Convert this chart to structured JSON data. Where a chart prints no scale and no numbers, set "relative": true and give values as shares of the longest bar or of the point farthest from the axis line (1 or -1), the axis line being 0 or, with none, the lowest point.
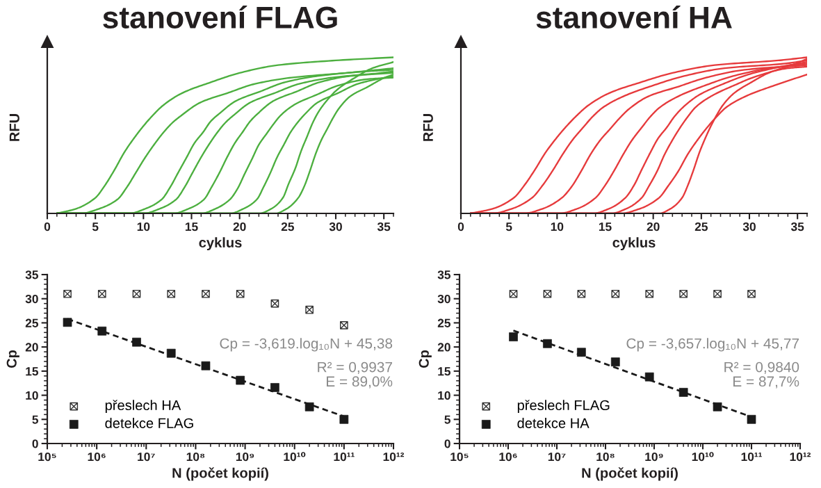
{
  "chart_data": [
    {
      "type": "line",
      "title": "stanovení FLAG",
      "xlabel": "cyklus",
      "ylabel": "RFU",
      "relative": true,
      "xlim": [
        0,
        36
      ],
      "xticks": [
        0,
        {
          "value": 1,
          "label": null
        },
        {
          "value": 2,
          "label": null
        },
        {
          "value": 3,
          "label": null
        },
        {
          "value": 4,
          "label": null
        },
        5,
        {
          "value": 6,
          "label": null
        },
        {
          "value": 7,
          "label": null
        },
        {
          "value": 8,
          "label": null
        },
        {
          "value": 9,
          "label": null
        },
        10,
        {
          "value": 11,
          "label": null
        },
        {
          "value": 12,
          "label": null
        },
        {
          "value": 13,
          "label": null
        },
        {
          "value": 14,
          "label": null
        },
        15,
        {
          "value": 16,
          "label": null
        },
        {
          "value": 17,
          "label": null
        },
        {
          "value": 18,
          "label": null
        },
        {
          "value": 19,
          "label": null
        },
        20,
        {
          "value": 21,
          "label": null
        },
        {
          "value": 22,
          "label": null
        },
        {
          "value": 23,
          "label": null
        },
        {
          "value": 24,
          "label": null
        },
        25,
        {
          "value": 26,
          "label": null
        },
        {
          "value": 27,
          "label": null
        },
        {
          "value": 28,
          "label": null
        },
        {
          "value": 29,
          "label": null
        },
        30,
        {
          "value": 31,
          "label": null
        },
        {
          "value": 32,
          "label": null
        },
        {
          "value": 33,
          "label": null
        },
        {
          "value": 34,
          "label": null
        },
        35,
        {
          "value": 36,
          "label": null
        }
      ],
      "series": [
        {
          "color": "#4caf3f",
          "x": [
            1,
            3,
            5,
            6,
            7,
            8,
            9,
            10,
            11,
            12,
            14,
            17,
            20,
            24,
            30,
            36
          ],
          "values": [
            0,
            0.03,
            0.1,
            0.18,
            0.28,
            0.39,
            0.48,
            0.56,
            0.63,
            0.69,
            0.77,
            0.84,
            0.9,
            0.95,
            0.98,
            1.0
          ]
        },
        {
          "color": "#4caf3f",
          "x": [
            1,
            3.5,
            5.4,
            7.3,
            8.3,
            9.2,
            10.2,
            11.1,
            12.1,
            13.0,
            14.0,
            15.9,
            18.7,
            21.6,
            25.4,
            31.1,
            36
          ],
          "values": [
            0,
            0,
            0.03,
            0.09,
            0.17,
            0.26,
            0.36,
            0.44,
            0.52,
            0.58,
            0.63,
            0.71,
            0.77,
            0.83,
            0.87,
            0.9,
            0.93
          ]
        },
        {
          "color": "#4caf3f",
          "x": [
            1,
            8.5,
            10.2,
            11.9,
            12.8,
            13.6,
            14.5,
            15.3,
            16.2,
            17.0,
            17.9,
            19.6,
            22.1,
            24.7,
            28.1,
            33.2,
            36
          ],
          "values": [
            0,
            0,
            0.03,
            0.09,
            0.17,
            0.26,
            0.36,
            0.45,
            0.52,
            0.59,
            0.64,
            0.72,
            0.78,
            0.84,
            0.88,
            0.91,
            0.92
          ]
        },
        {
          "color": "#4caf3f",
          "x": [
            1,
            10.0,
            11.7,
            13.4,
            14.3,
            15.1,
            16.0,
            16.8,
            17.7,
            18.5,
            19.4,
            21.1,
            23.6,
            26.2,
            29.6,
            34.7,
            36
          ],
          "values": [
            0,
            0,
            0.03,
            0.09,
            0.17,
            0.26,
            0.36,
            0.44,
            0.52,
            0.58,
            0.63,
            0.71,
            0.77,
            0.83,
            0.87,
            0.9,
            0.91
          ]
        },
        {
          "color": "#4caf3f",
          "x": [
            1,
            13.1,
            14.7,
            16.3,
            17.1,
            17.9,
            18.7,
            19.5,
            20.3,
            21.1,
            21.9,
            23.5,
            25.9,
            28.3,
            31.5,
            36
          ],
          "values": [
            0,
            0,
            0.03,
            0.09,
            0.17,
            0.26,
            0.36,
            0.45,
            0.52,
            0.59,
            0.64,
            0.72,
            0.78,
            0.84,
            0.88,
            0.9
          ]
        },
        {
          "color": "#4caf3f",
          "x": [
            1,
            16.0,
            17.5,
            19.0,
            19.8,
            20.5,
            21.3,
            22.0,
            22.8,
            23.5,
            24.3,
            25.8,
            28.0,
            30.3,
            33.3,
            36
          ],
          "values": [
            0,
            0,
            0.03,
            0.09,
            0.16,
            0.25,
            0.35,
            0.44,
            0.51,
            0.57,
            0.63,
            0.7,
            0.76,
            0.82,
            0.86,
            0.87
          ]
        },
        {
          "color": "#4caf3f",
          "x": [
            1,
            19.0,
            20.4,
            21.8,
            22.5,
            23.2,
            23.9,
            24.6,
            25.3,
            26.0,
            26.7,
            28.1,
            30.2,
            32.3,
            35.1,
            36
          ],
          "values": [
            0,
            0,
            0.03,
            0.09,
            0.17,
            0.26,
            0.36,
            0.44,
            0.52,
            0.58,
            0.63,
            0.71,
            0.77,
            0.83,
            0.87,
            0.88
          ]
        },
        {
          "color": "#4caf3f",
          "x": [
            1,
            22.0,
            23.3,
            24.5,
            25.1,
            25.8,
            26.4,
            27.0,
            27.6,
            28.2,
            28.9,
            30.1,
            32.0,
            33.8,
            36
          ],
          "values": [
            0,
            0,
            0.03,
            0.1,
            0.19,
            0.29,
            0.4,
            0.49,
            0.58,
            0.65,
            0.71,
            0.79,
            0.87,
            0.93,
            0.97
          ]
        },
        {
          "color": "#4caf3f",
          "x": [
            1,
            23.7,
            24.9,
            26.1,
            26.7,
            27.3,
            27.9,
            28.5,
            29.1,
            29.7,
            30.3,
            31.5,
            33.3,
            35.1,
            36
          ],
          "values": [
            0,
            0,
            0.03,
            0.1,
            0.17,
            0.27,
            0.38,
            0.47,
            0.54,
            0.61,
            0.67,
            0.75,
            0.81,
            0.87,
            0.89
          ]
        }
      ]
    },
    {
      "type": "line",
      "title": "stanovení HA",
      "xlabel": "cyklus",
      "ylabel": "RFU",
      "relative": true,
      "xlim": [
        0,
        36
      ],
      "xticks": [
        0,
        {
          "value": 1,
          "label": null
        },
        {
          "value": 2,
          "label": null
        },
        {
          "value": 3,
          "label": null
        },
        {
          "value": 4,
          "label": null
        },
        5,
        {
          "value": 6,
          "label": null
        },
        {
          "value": 7,
          "label": null
        },
        {
          "value": 8,
          "label": null
        },
        {
          "value": 9,
          "label": null
        },
        10,
        {
          "value": 11,
          "label": null
        },
        {
          "value": 12,
          "label": null
        },
        {
          "value": 13,
          "label": null
        },
        {
          "value": 14,
          "label": null
        },
        15,
        {
          "value": 16,
          "label": null
        },
        {
          "value": 17,
          "label": null
        },
        {
          "value": 18,
          "label": null
        },
        {
          "value": 19,
          "label": null
        },
        20,
        {
          "value": 21,
          "label": null
        },
        {
          "value": 22,
          "label": null
        },
        {
          "value": 23,
          "label": null
        },
        {
          "value": 24,
          "label": null
        },
        25,
        {
          "value": 26,
          "label": null
        },
        {
          "value": 27,
          "label": null
        },
        {
          "value": 28,
          "label": null
        },
        {
          "value": 29,
          "label": null
        },
        30,
        {
          "value": 31,
          "label": null
        },
        {
          "value": 32,
          "label": null
        },
        {
          "value": 33,
          "label": null
        },
        {
          "value": 34,
          "label": null
        },
        35,
        {
          "value": 36,
          "label": null
        }
      ],
      "series": [
        {
          "color": "#e63a3c",
          "x": [
            1,
            3.3,
            5.5,
            6.6,
            7.7,
            8.8,
            9.9,
            11.0,
            12.1,
            13.2,
            15.4,
            18.7,
            22.0,
            26.4,
            33.0,
            36
          ],
          "values": [
            0,
            0.03,
            0.1,
            0.18,
            0.28,
            0.39,
            0.48,
            0.56,
            0.63,
            0.69,
            0.77,
            0.84,
            0.9,
            0.95,
            0.98,
            1.0
          ]
        },
        {
          "color": "#e63a3c",
          "x": [
            1,
            3.2,
            5.3,
            7.4,
            8.5,
            9.5,
            10.6,
            11.6,
            12.7,
            13.7,
            14.8,
            16.9,
            20.0,
            23.2,
            27.4,
            33.7,
            36
          ],
          "values": [
            0,
            0,
            0.03,
            0.1,
            0.18,
            0.27,
            0.38,
            0.47,
            0.55,
            0.62,
            0.68,
            0.75,
            0.82,
            0.88,
            0.93,
            0.96,
            0.98
          ]
        },
        {
          "color": "#e63a3c",
          "x": [
            1,
            6.5,
            8.5,
            10.5,
            11.5,
            12.5,
            13.5,
            14.5,
            15.5,
            16.5,
            17.5,
            19.5,
            22.5,
            25.5,
            29.5,
            36
          ],
          "values": [
            0,
            0,
            0.03,
            0.1,
            0.17,
            0.27,
            0.38,
            0.47,
            0.54,
            0.61,
            0.67,
            0.75,
            0.81,
            0.87,
            0.92,
            0.95
          ]
        },
        {
          "color": "#e63a3c",
          "x": [
            1,
            10.2,
            12.1,
            14.0,
            15.0,
            15.9,
            16.9,
            17.8,
            18.8,
            19.7,
            20.7,
            22.6,
            25.4,
            28.3,
            32.1,
            36
          ],
          "values": [
            0,
            0,
            0.03,
            0.1,
            0.18,
            0.27,
            0.38,
            0.47,
            0.55,
            0.62,
            0.68,
            0.75,
            0.82,
            0.88,
            0.93,
            0.96
          ]
        },
        {
          "color": "#e63a3c",
          "x": [
            1,
            13.7,
            15.4,
            17.1,
            18.0,
            18.8,
            19.7,
            20.5,
            21.4,
            22.2,
            23.1,
            24.8,
            27.3,
            29.9,
            33.3,
            36
          ],
          "values": [
            0,
            0,
            0.03,
            0.1,
            0.18,
            0.28,
            0.39,
            0.48,
            0.55,
            0.62,
            0.68,
            0.76,
            0.83,
            0.89,
            0.94,
            0.97
          ]
        },
        {
          "color": "#e63a3c",
          "x": [
            1,
            15.6,
            17.2,
            18.8,
            19.6,
            20.4,
            21.2,
            22.0,
            22.8,
            23.6,
            24.4,
            26.0,
            28.4,
            30.8,
            34.0,
            36
          ],
          "values": [
            0,
            0,
            0.03,
            0.1,
            0.18,
            0.27,
            0.38,
            0.47,
            0.55,
            0.62,
            0.68,
            0.75,
            0.82,
            0.88,
            0.93,
            0.94
          ]
        },
        {
          "color": "#e63a3c",
          "x": [
            1,
            16.6,
            18.6,
            20.6,
            21.6,
            22.6,
            23.6,
            24.6,
            25.6,
            26.6,
            27.6,
            29.6,
            32.6,
            36
          ],
          "values": [
            0,
            0,
            0.03,
            0.1,
            0.18,
            0.27,
            0.38,
            0.47,
            0.55,
            0.62,
            0.68,
            0.75,
            0.82,
            0.89
          ]
        },
        {
          "color": "#e63a3c",
          "x": [
            1,
            20.6,
            21.8,
            23.0,
            23.6,
            24.2,
            24.8,
            25.4,
            26.0,
            26.6,
            27.2,
            28.4,
            30.2,
            32.0,
            34.4,
            36
          ],
          "values": [
            0,
            0,
            0.03,
            0.1,
            0.18,
            0.28,
            0.39,
            0.48,
            0.56,
            0.63,
            0.69,
            0.77,
            0.84,
            0.9,
            0.95,
            0.99
          ]
        }
      ]
    },
    {
      "type": "scatter",
      "xlabel": "N (počet kopií)",
      "ylabel": "Cp",
      "log": "x",
      "xlim": [
        100000.0,
        1000000000000.0
      ],
      "xticks": [
        {
          "value": 100000.0,
          "label": "10⁵"
        },
        {
          "value": 200000.0,
          "label": null
        },
        {
          "value": 300000.0,
          "label": null
        },
        {
          "value": 400000.0,
          "label": null
        },
        {
          "value": 500000.0,
          "label": null
        },
        {
          "value": 600000.0,
          "label": null
        },
        {
          "value": 700000.0,
          "label": null
        },
        {
          "value": 800000.0,
          "label": null
        },
        {
          "value": 900000.0,
          "label": null
        },
        {
          "value": 1000000.0,
          "label": "10⁶"
        },
        {
          "value": 2000000.0,
          "label": null
        },
        {
          "value": 3000000.0,
          "label": null
        },
        {
          "value": 4000000.0,
          "label": null
        },
        {
          "value": 5000000.0,
          "label": null
        },
        {
          "value": 6000000.0,
          "label": null
        },
        {
          "value": 7000000.0,
          "label": null
        },
        {
          "value": 8000000.0,
          "label": null
        },
        {
          "value": 9000000.0,
          "label": null
        },
        {
          "value": 10000000.0,
          "label": "10⁷"
        },
        {
          "value": 20000000.0,
          "label": null
        },
        {
          "value": 30000000.0,
          "label": null
        },
        {
          "value": 40000000.0,
          "label": null
        },
        {
          "value": 50000000.0,
          "label": null
        },
        {
          "value": 60000000.0,
          "label": null
        },
        {
          "value": 70000000.0,
          "label": null
        },
        {
          "value": 80000000.0,
          "label": null
        },
        {
          "value": 90000000.0,
          "label": null
        },
        {
          "value": 100000000.0,
          "label": "10⁸"
        },
        {
          "value": 200000000.0,
          "label": null
        },
        {
          "value": 300000000.0,
          "label": null
        },
        {
          "value": 400000000.0,
          "label": null
        },
        {
          "value": 500000000.0,
          "label": null
        },
        {
          "value": 600000000.0,
          "label": null
        },
        {
          "value": 700000000.0,
          "label": null
        },
        {
          "value": 800000000.0,
          "label": null
        },
        {
          "value": 900000000.0,
          "label": null
        },
        {
          "value": 1000000000.0,
          "label": "10⁹"
        },
        {
          "value": 2000000000.0,
          "label": null
        },
        {
          "value": 3000000000.0,
          "label": null
        },
        {
          "value": 4000000000.0,
          "label": null
        },
        {
          "value": 5000000000.0,
          "label": null
        },
        {
          "value": 6000000000.0,
          "label": null
        },
        {
          "value": 7000000000.0,
          "label": null
        },
        {
          "value": 8000000000.0,
          "label": null
        },
        {
          "value": 9000000000.0,
          "label": null
        },
        {
          "value": 10000000000.0,
          "label": "10¹⁰"
        },
        {
          "value": 20000000000.0,
          "label": null
        },
        {
          "value": 30000000000.0,
          "label": null
        },
        {
          "value": 40000000000.0,
          "label": null
        },
        {
          "value": 50000000000.0,
          "label": null
        },
        {
          "value": 60000000000.0,
          "label": null
        },
        {
          "value": 70000000000.0,
          "label": null
        },
        {
          "value": 80000000000.0,
          "label": null
        },
        {
          "value": 90000000000.0,
          "label": null
        },
        {
          "value": 100000000000.0,
          "label": "10¹¹"
        },
        {
          "value": 200000000000.0,
          "label": null
        },
        {
          "value": 300000000000.0,
          "label": null
        },
        {
          "value": 400000000000.0,
          "label": null
        },
        {
          "value": 500000000000.0,
          "label": null
        },
        {
          "value": 600000000000.0,
          "label": null
        },
        {
          "value": 700000000000.0,
          "label": null
        },
        {
          "value": 800000000000.0,
          "label": null
        },
        {
          "value": 900000000000.0,
          "label": null
        },
        {
          "value": 1000000000000.0,
          "label": "10¹²"
        }
      ],
      "ylim": [
        0,
        35
      ],
      "yticks": [
        0,
        {
          "value": 1,
          "label": null
        },
        {
          "value": 2,
          "label": null
        },
        {
          "value": 3,
          "label": null
        },
        {
          "value": 4,
          "label": null
        },
        5,
        {
          "value": 6,
          "label": null
        },
        {
          "value": 7,
          "label": null
        },
        {
          "value": 8,
          "label": null
        },
        {
          "value": 9,
          "label": null
        },
        10,
        {
          "value": 11,
          "label": null
        },
        {
          "value": 12,
          "label": null
        },
        {
          "value": 13,
          "label": null
        },
        {
          "value": 14,
          "label": null
        },
        15,
        {
          "value": 16,
          "label": null
        },
        {
          "value": 17,
          "label": null
        },
        {
          "value": 18,
          "label": null
        },
        {
          "value": 19,
          "label": null
        },
        20,
        {
          "value": 21,
          "label": null
        },
        {
          "value": 22,
          "label": null
        },
        {
          "value": 23,
          "label": null
        },
        {
          "value": 24,
          "label": null
        },
        25,
        {
          "value": 26,
          "label": null
        },
        {
          "value": 27,
          "label": null
        },
        {
          "value": 28,
          "label": null
        },
        {
          "value": 29,
          "label": null
        },
        30,
        {
          "value": 31,
          "label": null
        },
        {
          "value": 32,
          "label": null
        },
        {
          "value": 33,
          "label": null
        },
        {
          "value": 34,
          "label": null
        },
        35
      ],
      "legend": "bottom left",
      "annotations": [
        "Cp = -3,619.log₁₀N + 45,38",
        "R² = 0,9937",
        "E = 89,0%"
      ],
      "series": [
        {
          "name": "přeslech HA",
          "color": "#333333",
          "marker": "cross",
          "x": [
            256000.0,
            1280000.0,
            6400000.0,
            32000000.0,
            160000000.0,
            800000000.0,
            4000000000.0,
            20000000000.0,
            100000000000.0
          ],
          "values": [
            31,
            31,
            31,
            31,
            31,
            31,
            29,
            27.7,
            24.5
          ]
        },
        {
          "name": "detekce FLAG",
          "color": "#1a1a1a",
          "marker": "square",
          "x": [
            256000.0,
            1280000.0,
            6400000.0,
            32000000.0,
            160000000.0,
            800000000.0,
            4000000000.0,
            20000000000.0,
            100000000000.0
          ],
          "values": [
            25.1,
            23.3,
            21.0,
            18.7,
            16.1,
            13.1,
            11.6,
            7.6,
            5.0
          ]
        },
        {
          "type": "line",
          "color": "#1a1a1a",
          "line_style": "dashed",
          "x": [
            256000.0,
            100000000000.0
          ],
          "values": [
            25.8,
            5.6
          ]
        }
      ]
    },
    {
      "type": "scatter",
      "xlabel": "N (počet kopií)",
      "ylabel": "Cp",
      "log": "x",
      "xlim": [
        100000.0,
        1000000000000.0
      ],
      "xticks": [
        {
          "value": 100000.0,
          "label": "10⁵"
        },
        {
          "value": 200000.0,
          "label": null
        },
        {
          "value": 300000.0,
          "label": null
        },
        {
          "value": 400000.0,
          "label": null
        },
        {
          "value": 500000.0,
          "label": null
        },
        {
          "value": 600000.0,
          "label": null
        },
        {
          "value": 700000.0,
          "label": null
        },
        {
          "value": 800000.0,
          "label": null
        },
        {
          "value": 900000.0,
          "label": null
        },
        {
          "value": 1000000.0,
          "label": "10⁶"
        },
        {
          "value": 2000000.0,
          "label": null
        },
        {
          "value": 3000000.0,
          "label": null
        },
        {
          "value": 4000000.0,
          "label": null
        },
        {
          "value": 5000000.0,
          "label": null
        },
        {
          "value": 6000000.0,
          "label": null
        },
        {
          "value": 7000000.0,
          "label": null
        },
        {
          "value": 8000000.0,
          "label": null
        },
        {
          "value": 9000000.0,
          "label": null
        },
        {
          "value": 10000000.0,
          "label": "10⁷"
        },
        {
          "value": 20000000.0,
          "label": null
        },
        {
          "value": 30000000.0,
          "label": null
        },
        {
          "value": 40000000.0,
          "label": null
        },
        {
          "value": 50000000.0,
          "label": null
        },
        {
          "value": 60000000.0,
          "label": null
        },
        {
          "value": 70000000.0,
          "label": null
        },
        {
          "value": 80000000.0,
          "label": null
        },
        {
          "value": 90000000.0,
          "label": null
        },
        {
          "value": 100000000.0,
          "label": "10⁸"
        },
        {
          "value": 200000000.0,
          "label": null
        },
        {
          "value": 300000000.0,
          "label": null
        },
        {
          "value": 400000000.0,
          "label": null
        },
        {
          "value": 500000000.0,
          "label": null
        },
        {
          "value": 600000000.0,
          "label": null
        },
        {
          "value": 700000000.0,
          "label": null
        },
        {
          "value": 800000000.0,
          "label": null
        },
        {
          "value": 900000000.0,
          "label": null
        },
        {
          "value": 1000000000.0,
          "label": "10⁹"
        },
        {
          "value": 2000000000.0,
          "label": null
        },
        {
          "value": 3000000000.0,
          "label": null
        },
        {
          "value": 4000000000.0,
          "label": null
        },
        {
          "value": 5000000000.0,
          "label": null
        },
        {
          "value": 6000000000.0,
          "label": null
        },
        {
          "value": 7000000000.0,
          "label": null
        },
        {
          "value": 8000000000.0,
          "label": null
        },
        {
          "value": 9000000000.0,
          "label": null
        },
        {
          "value": 10000000000.0,
          "label": "10¹⁰"
        },
        {
          "value": 20000000000.0,
          "label": null
        },
        {
          "value": 30000000000.0,
          "label": null
        },
        {
          "value": 40000000000.0,
          "label": null
        },
        {
          "value": 50000000000.0,
          "label": null
        },
        {
          "value": 60000000000.0,
          "label": null
        },
        {
          "value": 70000000000.0,
          "label": null
        },
        {
          "value": 80000000000.0,
          "label": null
        },
        {
          "value": 90000000000.0,
          "label": null
        },
        {
          "value": 100000000000.0,
          "label": "10¹¹"
        },
        {
          "value": 200000000000.0,
          "label": null
        },
        {
          "value": 300000000000.0,
          "label": null
        },
        {
          "value": 400000000000.0,
          "label": null
        },
        {
          "value": 500000000000.0,
          "label": null
        },
        {
          "value": 600000000000.0,
          "label": null
        },
        {
          "value": 700000000000.0,
          "label": null
        },
        {
          "value": 800000000000.0,
          "label": null
        },
        {
          "value": 900000000000.0,
          "label": null
        },
        {
          "value": 1000000000000.0,
          "label": "10¹²"
        }
      ],
      "ylim": [
        0,
        35
      ],
      "yticks": [
        0,
        {
          "value": 1,
          "label": null
        },
        {
          "value": 2,
          "label": null
        },
        {
          "value": 3,
          "label": null
        },
        {
          "value": 4,
          "label": null
        },
        5,
        {
          "value": 6,
          "label": null
        },
        {
          "value": 7,
          "label": null
        },
        {
          "value": 8,
          "label": null
        },
        {
          "value": 9,
          "label": null
        },
        10,
        {
          "value": 11,
          "label": null
        },
        {
          "value": 12,
          "label": null
        },
        {
          "value": 13,
          "label": null
        },
        {
          "value": 14,
          "label": null
        },
        15,
        {
          "value": 16,
          "label": null
        },
        {
          "value": 17,
          "label": null
        },
        {
          "value": 18,
          "label": null
        },
        {
          "value": 19,
          "label": null
        },
        20,
        {
          "value": 21,
          "label": null
        },
        {
          "value": 22,
          "label": null
        },
        {
          "value": 23,
          "label": null
        },
        {
          "value": 24,
          "label": null
        },
        25,
        {
          "value": 26,
          "label": null
        },
        {
          "value": 27,
          "label": null
        },
        {
          "value": 28,
          "label": null
        },
        {
          "value": 29,
          "label": null
        },
        30,
        {
          "value": 31,
          "label": null
        },
        {
          "value": 32,
          "label": null
        },
        {
          "value": 33,
          "label": null
        },
        {
          "value": 34,
          "label": null
        },
        35
      ],
      "legend": "bottom left",
      "annotations": [
        "Cp = -3,657.log₁₀N + 45,77",
        "R² = 0,9840",
        "E = 87,7%"
      ],
      "series": [
        {
          "name": "přeslech FLAG",
          "color": "#333333",
          "marker": "cross",
          "x": [
            1280000.0,
            6400000.0,
            32000000.0,
            160000000.0,
            800000000.0,
            4000000000.0,
            20000000000.0,
            100000000000.0
          ],
          "values": [
            31,
            31,
            31,
            31,
            31,
            31,
            31,
            31
          ]
        },
        {
          "name": "detekce HA",
          "color": "#1a1a1a",
          "marker": "square",
          "x": [
            1280000.0,
            6400000.0,
            32000000.0,
            160000000.0,
            800000000.0,
            4000000000.0,
            20000000000.0,
            100000000000.0
          ],
          "values": [
            22.1,
            20.7,
            18.9,
            16.9,
            13.8,
            10.6,
            7.6,
            5.0
          ]
        },
        {
          "type": "line",
          "color": "#1a1a1a",
          "line_style": "dashed",
          "x": [
            1280000.0,
            100000000000.0
          ],
          "values": [
            23.4,
            5.5
          ]
        }
      ]
    }
  ]
}
